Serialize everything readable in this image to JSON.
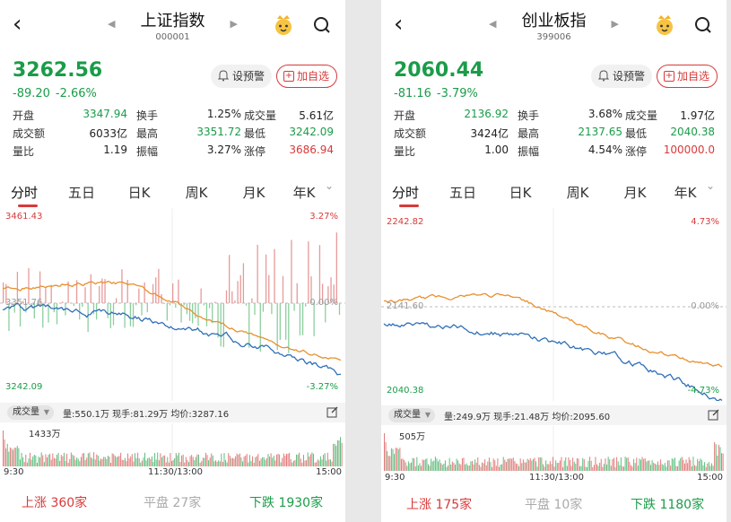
{
  "panels": [
    {
      "title": "上证指数",
      "code": "000001",
      "price": "3262.56",
      "change": "-89.20",
      "pct": "-2.66%",
      "alert_label": "设预警",
      "add_label": "加自选",
      "stats": [
        [
          {
            "l": "开盘",
            "v": "3347.94",
            "c": "g"
          },
          {
            "l": "换手",
            "v": "1.25%",
            "c": "k"
          },
          {
            "l": "成交量",
            "v": "5.61亿",
            "c": "k"
          }
        ],
        [
          {
            "l": "成交额",
            "v": "6033亿",
            "c": "k"
          },
          {
            "l": "最高",
            "v": "3351.72",
            "c": "g"
          },
          {
            "l": "最低",
            "v": "3242.09",
            "c": "g"
          }
        ],
        [
          {
            "l": "量比",
            "v": "1.19",
            "c": "k"
          },
          {
            "l": "振幅",
            "v": "3.27%",
            "c": "k"
          },
          {
            "l": "涨停",
            "v": "3686.94",
            "c": "r"
          }
        ]
      ],
      "tabs": [
        "分时",
        "五日",
        "日K",
        "周K",
        "月K",
        "年K"
      ],
      "chart": {
        "top_left": "3461.43",
        "top_right": "3.27%",
        "mid_left": "3351.76",
        "mid_right": "0.00%",
        "bot_left": "3242.09",
        "bot_right": "-3.27%"
      },
      "vol": {
        "selector": "成交量",
        "info": "量:550.1万  现手:81.29万  均价:3287.16",
        "max": "1433万"
      },
      "times": [
        "9:30",
        "11:30/13:00",
        "15:00"
      ],
      "footer": {
        "up": "上涨",
        "up_n": "360家",
        "flat": "平盘",
        "flat_n": "27家",
        "down": "下跌",
        "down_n": "1930家"
      }
    },
    {
      "title": "创业板指",
      "code": "399006",
      "price": "2060.44",
      "change": "-81.16",
      "pct": "-3.79%",
      "alert_label": "设预警",
      "add_label": "加自选",
      "stats": [
        [
          {
            "l": "开盘",
            "v": "2136.92",
            "c": "g"
          },
          {
            "l": "换手",
            "v": "3.68%",
            "c": "k"
          },
          {
            "l": "成交量",
            "v": "1.97亿",
            "c": "k"
          }
        ],
        [
          {
            "l": "成交额",
            "v": "3424亿",
            "c": "k"
          },
          {
            "l": "最高",
            "v": "2137.65",
            "c": "g"
          },
          {
            "l": "最低",
            "v": "2040.38",
            "c": "g"
          }
        ],
        [
          {
            "l": "量比",
            "v": "1.00",
            "c": "k"
          },
          {
            "l": "振幅",
            "v": "4.54%",
            "c": "k"
          },
          {
            "l": "涨停",
            "v": "100000.0",
            "c": "r"
          }
        ]
      ],
      "tabs": [
        "分时",
        "五日",
        "日K",
        "周K",
        "月K",
        "年K"
      ],
      "chart": {
        "top_left": "2242.82",
        "top_right": "4.73%",
        "mid_left": "2141.60",
        "mid_right": "0.00%",
        "bot_left": "2040.38",
        "bot_right": "-4.73%"
      },
      "vol": {
        "selector": "成交量",
        "info": "量:249.9万  现手:21.48万  均价:2095.60",
        "max": "505万"
      },
      "times": [
        "9:30",
        "11:30/13:00",
        "15:00"
      ],
      "footer": {
        "up": "上涨",
        "up_n": "175家",
        "flat": "平盘",
        "flat_n": "10家",
        "down": "下跌",
        "down_n": "1180家"
      }
    }
  ],
  "colors": {
    "up": "#d83a3a",
    "down": "#1a9c48",
    "price_line": "#2f6fb8",
    "avg_line": "#e8902e"
  }
}
